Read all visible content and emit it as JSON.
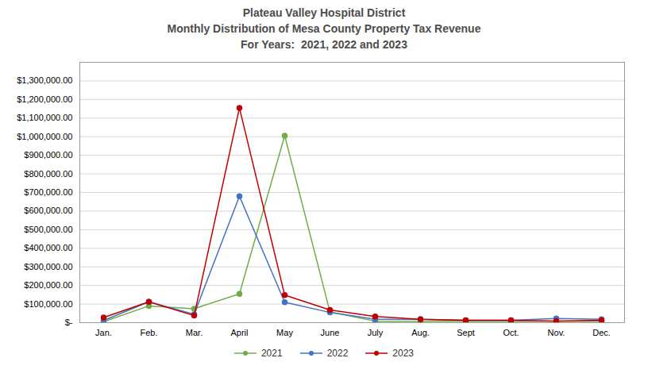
{
  "chart_data": {
    "type": "line",
    "title": "Plateau Valley Hospital District\nMonthly Distribution of Mesa County Property Tax Revenue\nFor Years:  2021, 2022 and 2023",
    "categories": [
      "Jan.",
      "Feb.",
      "Mar.",
      "April",
      "May",
      "June",
      "July",
      "Aug.",
      "Sept",
      "Oct.",
      "Nov.",
      "Dec."
    ],
    "series": [
      {
        "name": "2021",
        "color": "#70AD47",
        "values": [
          5000,
          90000,
          75000,
          155000,
          1005000,
          58000,
          8000,
          8000,
          8000,
          8000,
          8000,
          8000
        ]
      },
      {
        "name": "2022",
        "color": "#4472C4",
        "values": [
          12000,
          112000,
          45000,
          680000,
          110000,
          55000,
          18000,
          18000,
          13000,
          13000,
          22000,
          18000
        ]
      },
      {
        "name": "2023",
        "color": "#C00000",
        "values": [
          28000,
          112000,
          38000,
          1155000,
          148000,
          68000,
          33000,
          18000,
          13000,
          13000,
          9000,
          13000
        ]
      }
    ],
    "ylim": [
      0,
      1400000
    ],
    "yticks": [
      {
        "value": 0,
        "label": "$-"
      },
      {
        "value": 100000,
        "label": "$100,000.00"
      },
      {
        "value": 200000,
        "label": "$200,000.00"
      },
      {
        "value": 300000,
        "label": "$300,000.00"
      },
      {
        "value": 400000,
        "label": "$400,000.00"
      },
      {
        "value": 500000,
        "label": "$500,000.00"
      },
      {
        "value": 600000,
        "label": "$600,000.00"
      },
      {
        "value": 700000,
        "label": "$700,000.00"
      },
      {
        "value": 800000,
        "label": "$800,000.00"
      },
      {
        "value": 900000,
        "label": "$900,000.00"
      },
      {
        "value": 1000000,
        "label": "$1,000,000.00"
      },
      {
        "value": 1100000,
        "label": "$1,100,000.00"
      },
      {
        "value": 1200000,
        "label": "$1,200,000.00"
      },
      {
        "value": 1300000,
        "label": "$1,300,000.00"
      }
    ],
    "grid": true,
    "legend": "bottom",
    "marker": "circle"
  }
}
